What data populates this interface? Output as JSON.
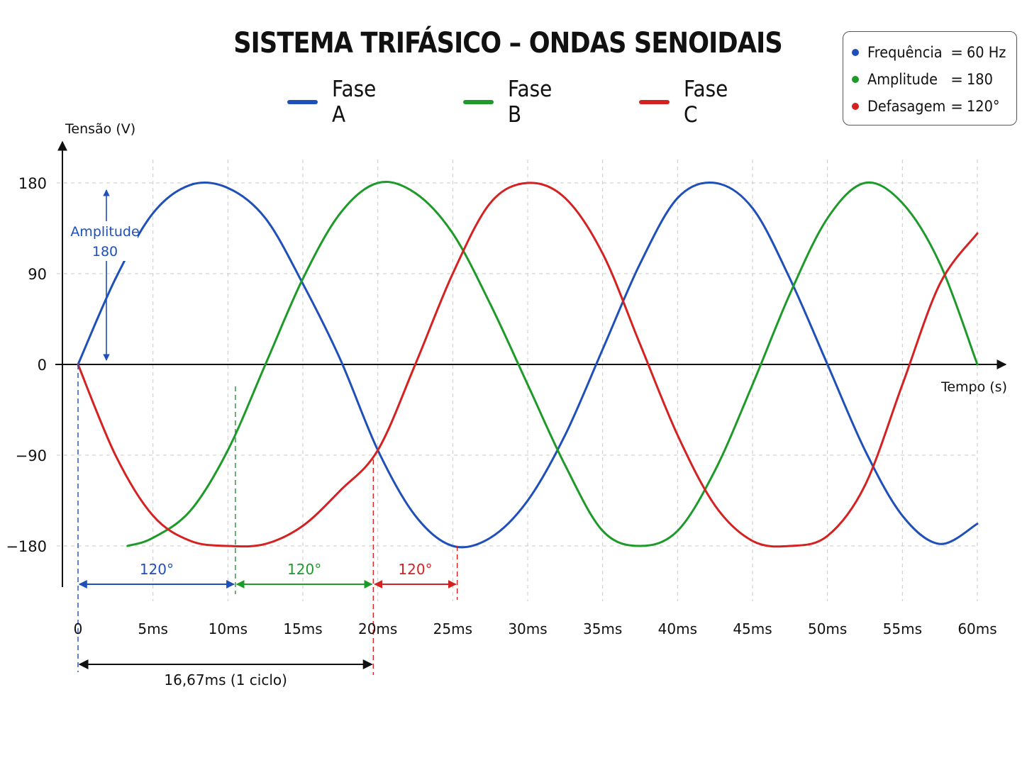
{
  "chart_data": {
    "type": "line",
    "title": "SISTEMA TRIFÁSICO – ONDAS SENOIDAIS",
    "xlabel": "Tempo (s)",
    "ylabel": "Tensão (V)",
    "x_ticks": [
      "0",
      "5ms",
      "10ms",
      "15ms",
      "20ms",
      "25ms",
      "30ms",
      "35ms",
      "40ms",
      "45ms",
      "50ms",
      "55ms",
      "60ms"
    ],
    "y_ticks": [
      "180",
      "90",
      "0",
      "−90",
      "−180"
    ],
    "y_tick_values": [
      180,
      90,
      0,
      -90,
      -180
    ],
    "xlim": [
      0,
      60
    ],
    "ylim": [
      -180,
      180
    ],
    "grid": true,
    "legend_position": "top-center",
    "series": [
      {
        "name": "Fase A",
        "color": "#1f4fb8",
        "x": [
          0,
          2.5,
          5,
          7.5,
          10,
          12.5,
          15,
          17.5,
          20,
          22.5,
          25,
          27.5,
          30,
          32.5,
          35,
          37.5,
          40,
          42.5,
          45,
          47.5,
          50,
          52.5,
          55,
          57.5,
          60
        ],
        "y": [
          0,
          85,
          150,
          178,
          175,
          145,
          80,
          5,
          -85,
          -150,
          -180,
          -172,
          -135,
          -70,
          15,
          100,
          165,
          180,
          155,
          85,
          0,
          -85,
          -150,
          -178,
          -158
        ]
      },
      {
        "name": "Fase B",
        "color": "#1e9a2a",
        "x": [
          3.3,
          5,
          7.5,
          10,
          12.5,
          15,
          17.5,
          20,
          22.5,
          25,
          27.5,
          30,
          32.5,
          35,
          37.5,
          40,
          42.5,
          45,
          47.5,
          50,
          52.5,
          55,
          57.5,
          60
        ],
        "y": [
          -180,
          -172,
          -145,
          -85,
          0,
          85,
          150,
          180,
          170,
          130,
          60,
          -20,
          -100,
          -165,
          -180,
          -165,
          -105,
          -20,
          70,
          145,
          180,
          160,
          100,
          0
        ]
      },
      {
        "name": "Fase C",
        "color": "#d42222",
        "x": [
          0,
          2.5,
          5,
          7.5,
          10,
          12.5,
          15,
          17.5,
          20,
          22.5,
          25,
          27.5,
          30,
          32.5,
          35,
          37.5,
          40,
          42.5,
          45,
          47.5,
          50,
          52.5,
          55,
          57.5,
          60
        ],
        "y": [
          0,
          -90,
          -150,
          -175,
          -180,
          -178,
          -160,
          -125,
          -85,
          0,
          90,
          160,
          180,
          165,
          110,
          20,
          -70,
          -140,
          -175,
          -180,
          -170,
          -120,
          -20,
          80,
          130
        ]
      }
    ],
    "annotations": [
      {
        "text": "Amplitude",
        "color": "#1f4fb8"
      },
      {
        "text": "180",
        "color": "#1f4fb8"
      },
      {
        "text": "120°",
        "color": "#1f4fb8",
        "from_ms": 0,
        "to_ms": 10.5
      },
      {
        "text": "120°",
        "color": "#1e9a2a",
        "from_ms": 10.5,
        "to_ms": 19.7
      },
      {
        "text": "120°",
        "color": "#d42222",
        "from_ms": 19.7,
        "to_ms": 25.3
      },
      {
        "text": "16,67ms (1 ciclo)",
        "color": "#111111",
        "from_ms": 0,
        "to_ms": 19.7
      }
    ]
  },
  "legend": [
    {
      "label": "Fase A",
      "color": "#1f4fb8"
    },
    {
      "label": "Fase B",
      "color": "#1e9a2a"
    },
    {
      "label": "Fase C",
      "color": "#d42222"
    }
  ],
  "info_box": [
    {
      "label": "Frequência",
      "eq": "=",
      "value": "60 Hz",
      "color": "#1f4fb8"
    },
    {
      "label": "Amplitude",
      "eq": "=",
      "value": "180",
      "color": "#1e9a2a"
    },
    {
      "label": "Defasagem",
      "eq": "=",
      "value": "120°",
      "color": "#d42222"
    }
  ]
}
